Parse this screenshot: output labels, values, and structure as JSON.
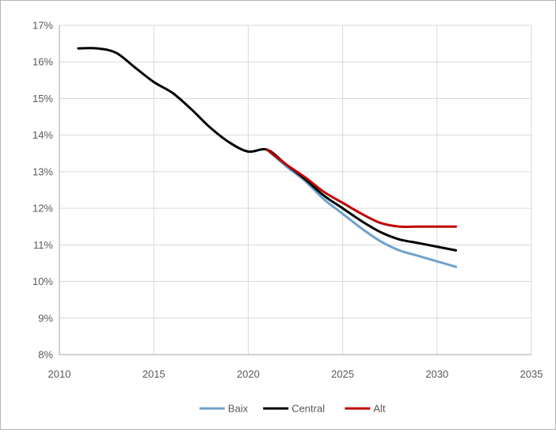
{
  "chart_data": {
    "type": "line",
    "title": "",
    "xlabel": "",
    "ylabel": "",
    "xlim": [
      2010,
      2035
    ],
    "ylim": [
      8,
      17
    ],
    "x_ticks": [
      2010,
      2015,
      2020,
      2025,
      2030,
      2035
    ],
    "x_tick_labels": [
      "2010",
      "2015",
      "2020",
      "2025",
      "2030",
      "2035"
    ],
    "y_ticks": [
      8,
      9,
      10,
      11,
      12,
      13,
      14,
      15,
      16,
      17
    ],
    "y_tick_labels": [
      "8%",
      "9%",
      "10%",
      "11%",
      "12%",
      "13%",
      "14%",
      "15%",
      "16%",
      "17%"
    ],
    "grid": true,
    "legend_position": "bottom",
    "series": [
      {
        "name": "Baix",
        "color": "#6fa1cd",
        "x": [
          2021,
          2022,
          2023,
          2024,
          2025,
          2026,
          2027,
          2028,
          2029,
          2030,
          2031
        ],
        "y": [
          13.6,
          13.15,
          12.75,
          12.25,
          11.85,
          11.45,
          11.1,
          10.85,
          10.7,
          10.55,
          10.4
        ]
      },
      {
        "name": "Central",
        "color": "#000000",
        "x": [
          2011,
          2012,
          2013,
          2014,
          2015,
          2016,
          2017,
          2018,
          2019,
          2020,
          2021,
          2022,
          2023,
          2024,
          2025,
          2026,
          2027,
          2028,
          2029,
          2030,
          2031
        ],
        "y": [
          16.37,
          16.37,
          16.25,
          15.85,
          15.45,
          15.15,
          14.7,
          14.2,
          13.8,
          13.55,
          13.6,
          13.2,
          12.8,
          12.35,
          12.0,
          11.65,
          11.35,
          11.15,
          11.05,
          10.95,
          10.85
        ]
      },
      {
        "name": "Alt",
        "color": "#c00000",
        "x": [
          2021,
          2022,
          2023,
          2024,
          2025,
          2026,
          2027,
          2028,
          2029,
          2030,
          2031
        ],
        "y": [
          13.6,
          13.2,
          12.85,
          12.45,
          12.15,
          11.85,
          11.6,
          11.5,
          11.5,
          11.5,
          11.5
        ]
      }
    ]
  }
}
